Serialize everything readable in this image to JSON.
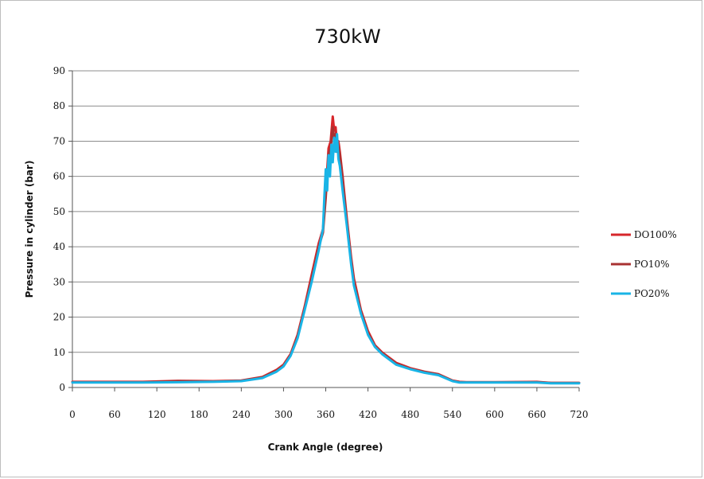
{
  "chart_data": {
    "type": "line",
    "title": "730kW",
    "xlabel": "Crank Angle (degree)",
    "ylabel": "Pressure in cylinder (bar)",
    "xlim": [
      0,
      720
    ],
    "ylim": [
      0,
      90
    ],
    "xticks": [
      0,
      60,
      120,
      180,
      240,
      300,
      360,
      420,
      480,
      540,
      600,
      660,
      720
    ],
    "yticks": [
      0,
      10,
      20,
      30,
      40,
      50,
      60,
      70,
      80,
      90
    ],
    "grid": "horizontal",
    "legend_position": "right",
    "series": [
      {
        "name": "DO100%",
        "color": "#d7262b",
        "x": [
          0,
          100,
          150,
          200,
          240,
          270,
          290,
          300,
          310,
          320,
          330,
          340,
          350,
          356,
          360,
          364,
          367,
          370,
          372,
          374,
          376,
          378,
          380,
          384,
          390,
          396,
          400,
          410,
          420,
          430,
          440,
          460,
          480,
          500,
          520,
          540,
          550,
          560,
          600,
          660,
          680,
          720
        ],
        "y": [
          1.6,
          1.6,
          1.9,
          1.8,
          2.0,
          3.0,
          5.0,
          6.5,
          9.5,
          15,
          23,
          32,
          41,
          45,
          55,
          68,
          70,
          77,
          73,
          74,
          69,
          70,
          67,
          60,
          48,
          37,
          31,
          22,
          16,
          12,
          10,
          7,
          5.5,
          4.5,
          3.8,
          2.0,
          1.6,
          1.5,
          1.5,
          1.6,
          1.3,
          1.3
        ]
      },
      {
        "name": "PO10%",
        "color": "#a83232",
        "x": [
          0,
          100,
          150,
          200,
          240,
          270,
          290,
          300,
          310,
          320,
          330,
          340,
          350,
          356,
          360,
          364,
          367,
          370,
          372,
          374,
          376,
          378,
          380,
          384,
          390,
          396,
          400,
          410,
          420,
          430,
          440,
          460,
          480,
          500,
          520,
          540,
          550,
          560,
          600,
          660,
          680,
          720
        ],
        "y": [
          1.5,
          1.5,
          1.8,
          1.7,
          1.9,
          2.9,
          4.8,
          6.2,
          9.2,
          14.5,
          22.5,
          31,
          40,
          44,
          54,
          66,
          68,
          74,
          71,
          72,
          67,
          69,
          66,
          59,
          47,
          36,
          30,
          21.5,
          15.5,
          11.8,
          9.8,
          6.8,
          5.3,
          4.4,
          3.7,
          1.9,
          1.5,
          1.5,
          1.5,
          1.5,
          1.3,
          1.3
        ]
      },
      {
        "name": "PO20%",
        "color": "#19b4e6",
        "x": [
          0,
          100,
          150,
          200,
          240,
          270,
          290,
          300,
          310,
          320,
          330,
          340,
          350,
          356,
          358,
          360,
          362,
          364,
          366,
          368,
          370,
          372,
          374,
          376,
          378,
          380,
          384,
          390,
          396,
          400,
          410,
          420,
          430,
          440,
          460,
          480,
          500,
          520,
          540,
          550,
          560,
          600,
          660,
          680,
          720
        ],
        "y": [
          1.4,
          1.4,
          1.5,
          1.6,
          1.8,
          2.7,
          4.5,
          6.0,
          9.0,
          14,
          22,
          30,
          39,
          45,
          54,
          62,
          56,
          66,
          60,
          69,
          64,
          71,
          67,
          72,
          65,
          63,
          56,
          46,
          35,
          29,
          21,
          15,
          11.5,
          9.5,
          6.5,
          5.2,
          4.2,
          3.5,
          1.8,
          1.4,
          1.4,
          1.4,
          1.4,
          1.2,
          1.2
        ]
      }
    ]
  }
}
